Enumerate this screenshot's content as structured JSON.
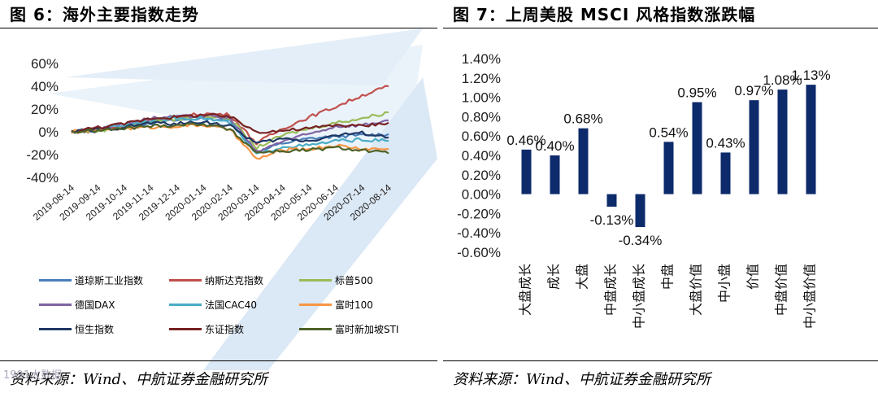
{
  "left": {
    "title": "图 6：海外主要指数走势",
    "source": "资料来源：Wind、中航证券金融研究所",
    "watermark": "1991大数据",
    "chart_data": {
      "type": "line",
      "ylim": [
        -40,
        60
      ],
      "yticks": [
        "60%",
        "40%",
        "20%",
        "0%",
        "-20%",
        "-40%"
      ],
      "x": [
        "2019-08-14",
        "2019-09-14",
        "2019-10-14",
        "2019-11-14",
        "2019-12-14",
        "2020-01-14",
        "2020-02-14",
        "2020-03-14",
        "2020-04-14",
        "2020-05-14",
        "2020-06-14",
        "2020-07-14",
        "2020-08-14"
      ],
      "series": [
        {
          "name": "道琼斯工业指数",
          "color": "#4a7ebb",
          "values": [
            0,
            1,
            4,
            8,
            10,
            12,
            10,
            -18,
            -10,
            -6,
            -4,
            -3,
            -2
          ]
        },
        {
          "name": "纳斯达克指数",
          "color": "#c0504d",
          "values": [
            0,
            1,
            5,
            10,
            13,
            16,
            15,
            -10,
            3,
            13,
            22,
            32,
            40
          ]
        },
        {
          "name": "标普500",
          "color": "#9bbb59",
          "values": [
            0,
            1,
            4,
            9,
            11,
            14,
            12,
            -14,
            -3,
            3,
            8,
            12,
            17
          ]
        },
        {
          "name": "德国DAX",
          "color": "#8064a2",
          "values": [
            0,
            3,
            7,
            12,
            13,
            14,
            12,
            -18,
            -8,
            -2,
            5,
            6,
            10
          ]
        },
        {
          "name": "法国CAC40",
          "color": "#4bacc6",
          "values": [
            0,
            3,
            6,
            10,
            12,
            12,
            8,
            -20,
            -13,
            -12,
            -8,
            -7,
            -8
          ]
        },
        {
          "name": "富时100",
          "color": "#f79646",
          "values": [
            0,
            2,
            3,
            4,
            5,
            6,
            2,
            -24,
            -16,
            -15,
            -12,
            -15,
            -15
          ]
        },
        {
          "name": "恒生指数",
          "color": "#1f3864",
          "values": [
            0,
            2,
            4,
            8,
            7,
            9,
            5,
            -10,
            -6,
            -8,
            -3,
            -1,
            -5
          ]
        },
        {
          "name": "东证指数",
          "color": "#772222",
          "values": [
            0,
            4,
            7,
            12,
            13,
            15,
            13,
            0,
            1,
            3,
            6,
            5,
            8
          ]
        },
        {
          "name": "富时新加坡STI",
          "color": "#4f6228",
          "values": [
            0,
            1,
            3,
            5,
            6,
            7,
            2,
            -18,
            -17,
            -16,
            -14,
            -16,
            -19
          ]
        }
      ]
    }
  },
  "right": {
    "title": "图 7：上周美股 MSCI 风格指数涨跌幅",
    "source": "资料来源：Wind、中航证券金融研究所",
    "chart_data": {
      "type": "bar",
      "categories": [
        "大盘成长",
        "成长",
        "大盘",
        "中盘成长",
        "中小盘成长",
        "中盘",
        "大盘价值",
        "中小盘",
        "价值",
        "中盘价值",
        "中小盘价值"
      ],
      "values": [
        0.46,
        0.4,
        0.68,
        -0.13,
        -0.34,
        0.54,
        0.95,
        0.43,
        0.97,
        1.08,
        1.13
      ],
      "labels": [
        "0.46%",
        "0.40%",
        "0.68%",
        "-0.13%",
        "-0.34%",
        "0.54%",
        "0.95%",
        "0.43%",
        "0.97%",
        "1.08%",
        "1.13%"
      ],
      "ylim": [
        -0.6,
        1.4
      ],
      "yticks": [
        "1.40%",
        "1.20%",
        "1.00%",
        "0.80%",
        "0.60%",
        "0.40%",
        "0.20%",
        "0.00%",
        "-0.20%",
        "-0.40%",
        "-0.60%"
      ],
      "bar_color": "#0d2b6b"
    }
  }
}
